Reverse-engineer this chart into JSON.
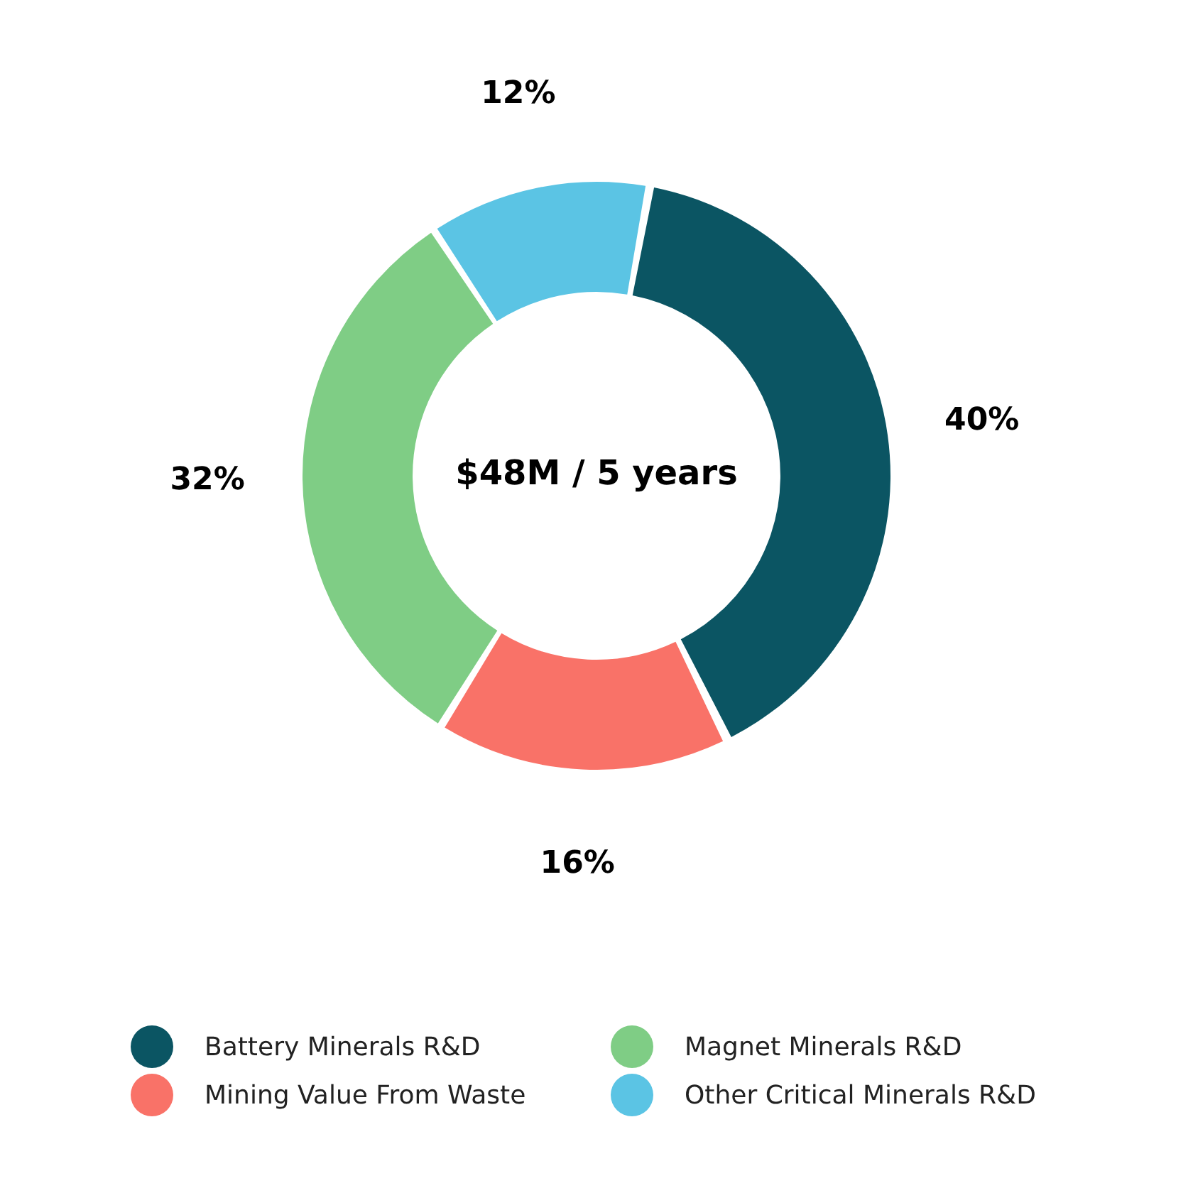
{
  "chart_data": {
    "type": "donut",
    "categories": [
      "Battery Minerals R&D",
      "Mining Value From Waste",
      "Magnet Minerals R&D",
      "Other Critical Minerals R&D"
    ],
    "values": [
      40,
      16,
      32,
      12
    ],
    "colors": [
      "#0b5563",
      "#f97268",
      "#7fcd85",
      "#5bc4e4"
    ],
    "value_labels": [
      "40%",
      "16%",
      "32%",
      "12%"
    ],
    "annotations": [
      "$48M / 5 years"
    ],
    "legend": "bottom"
  }
}
